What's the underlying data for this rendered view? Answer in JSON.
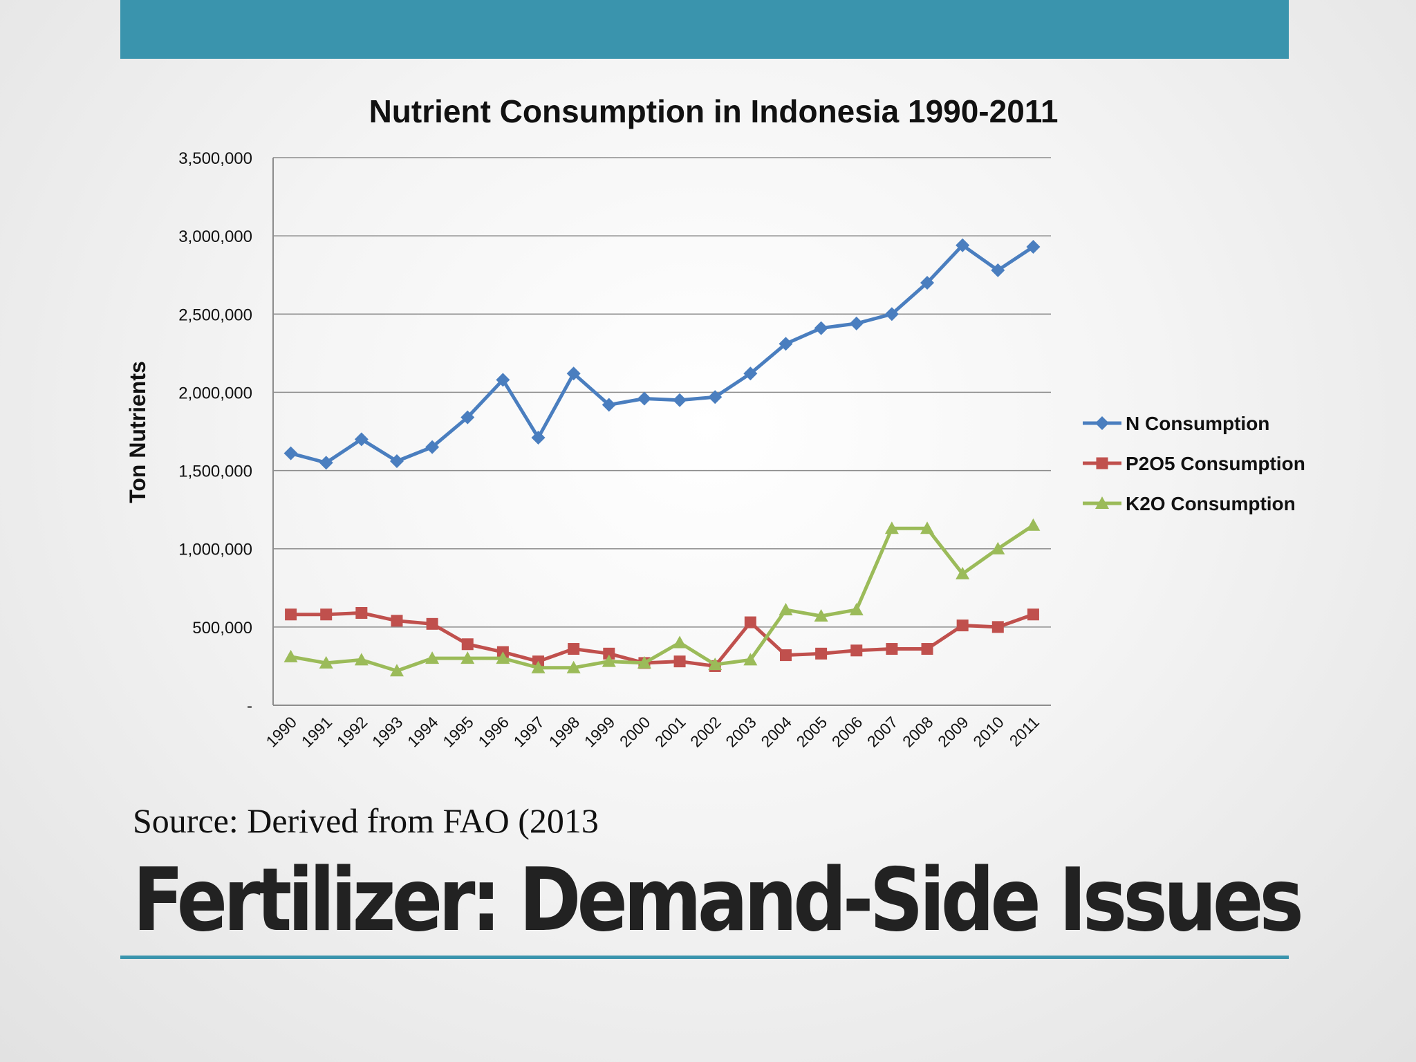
{
  "slide": {
    "title": "Fertilizer:  Demand-Side Issues",
    "source": "Source:  Derived from FAO (2013",
    "accent_color": "#3a94ad"
  },
  "chart_data": {
    "type": "line",
    "title": "Nutrient Consumption in Indonesia 1990-2011",
    "xlabel": "",
    "ylabel": "Ton Nutrients",
    "ylim": [
      0,
      3500000
    ],
    "yticks": [
      0,
      500000,
      1000000,
      1500000,
      2000000,
      2500000,
      3000000,
      3500000
    ],
    "ytick_labels": [
      "-",
      "500,000",
      "1,000,000",
      "1,500,000",
      "2,000,000",
      "2,500,000",
      "3,000,000",
      "3,500,000"
    ],
    "grid": true,
    "legend_position": "right",
    "categories": [
      "1990",
      "1991",
      "1992",
      "1993",
      "1994",
      "1995",
      "1996",
      "1997",
      "1998",
      "1999",
      "2000",
      "2001",
      "2002",
      "2003",
      "2004",
      "2005",
      "2006",
      "2007",
      "2008",
      "2009",
      "2010",
      "2011"
    ],
    "series": [
      {
        "name": "N Consumption",
        "color": "#4a7ebf",
        "marker": "diamond",
        "values": [
          1610000,
          1550000,
          1700000,
          1560000,
          1650000,
          1840000,
          2080000,
          1710000,
          2120000,
          1920000,
          1960000,
          1950000,
          1970000,
          2120000,
          2310000,
          2410000,
          2440000,
          2500000,
          2700000,
          2940000,
          2780000,
          2930000
        ]
      },
      {
        "name": "P2O5 Consumption",
        "color": "#c0504d",
        "marker": "square",
        "values": [
          580000,
          580000,
          590000,
          540000,
          520000,
          390000,
          340000,
          280000,
          360000,
          330000,
          270000,
          280000,
          250000,
          530000,
          320000,
          330000,
          350000,
          360000,
          360000,
          510000,
          500000,
          580000
        ]
      },
      {
        "name": "K2O Consumption",
        "color": "#9bbb59",
        "marker": "triangle",
        "values": [
          310000,
          270000,
          290000,
          220000,
          300000,
          300000,
          300000,
          240000,
          240000,
          280000,
          270000,
          400000,
          260000,
          290000,
          610000,
          570000,
          610000,
          1130000,
          1130000,
          840000,
          1000000,
          1150000
        ]
      }
    ]
  }
}
